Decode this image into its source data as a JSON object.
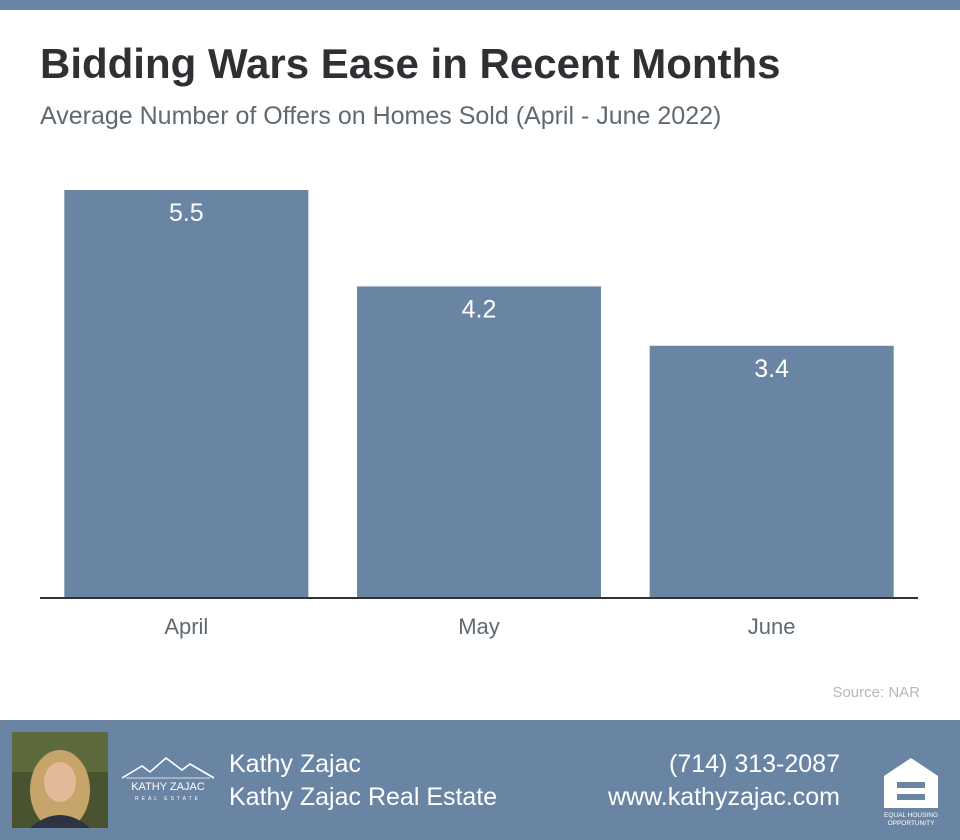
{
  "title": "Bidding Wars Ease in Recent Months",
  "subtitle": "Average Number of Offers on Homes Sold (April - June 2022)",
  "source": "Source: NAR",
  "colors": {
    "bar": "#6a84a4",
    "bar_label": "#ffffff",
    "axis": "#333333",
    "category_label": "#5f6a73",
    "footer_bg": "#6a84a4"
  },
  "chart_data": {
    "type": "bar",
    "categories": [
      "April",
      "May",
      "June"
    ],
    "values": [
      5.5,
      4.2,
      3.4
    ],
    "data_labels": [
      "5.5",
      "4.2",
      "3.4"
    ],
    "title": "Bidding Wars Ease in Recent Months",
    "subtitle": "Average Number of Offers on Homes Sold (April - June 2022)",
    "xlabel": "",
    "ylabel": "",
    "ylim": [
      0,
      5.5
    ],
    "grid": false,
    "legend": "none"
  },
  "footer": {
    "agent_name": "Kathy Zajac",
    "company": "Kathy Zajac Real Estate",
    "phone": "(714) 313-2087",
    "website": "www.kathyzajac.com",
    "logo_text": "KATHY ZAJAC",
    "logo_subtext": "REAL ESTATE",
    "eho_line1": "EQUAL HOUSING",
    "eho_line2": "OPPORTUNITY",
    "avatar_icon": "agent-photo",
    "logo_icon": "house-roofline-icon",
    "eho_icon": "equal-housing-icon"
  }
}
